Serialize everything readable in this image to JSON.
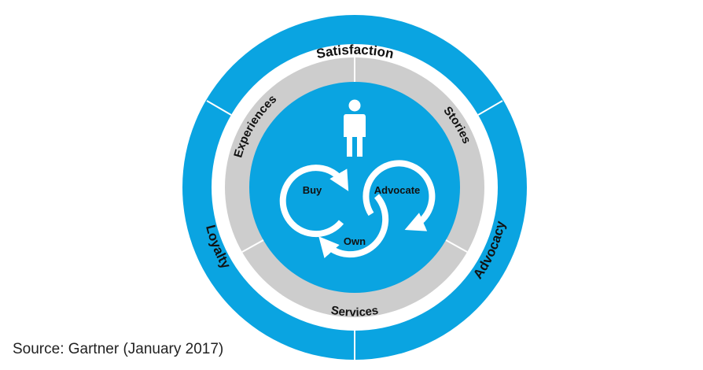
{
  "outer_ring": [
    "Satisfaction",
    "Advocacy",
    "Loyalty"
  ],
  "middle_ring": [
    "Experiences",
    "Stories",
    "Services"
  ],
  "cycle": [
    "Buy",
    "Advocate",
    "Own"
  ],
  "source": "Source: Gartner (January 2017)",
  "icons": {
    "center": "person-icon"
  },
  "colors": {
    "blue": "#0aa4e1",
    "gray": "#cdcdcd",
    "white": "#ffffff",
    "text": "#111111"
  }
}
